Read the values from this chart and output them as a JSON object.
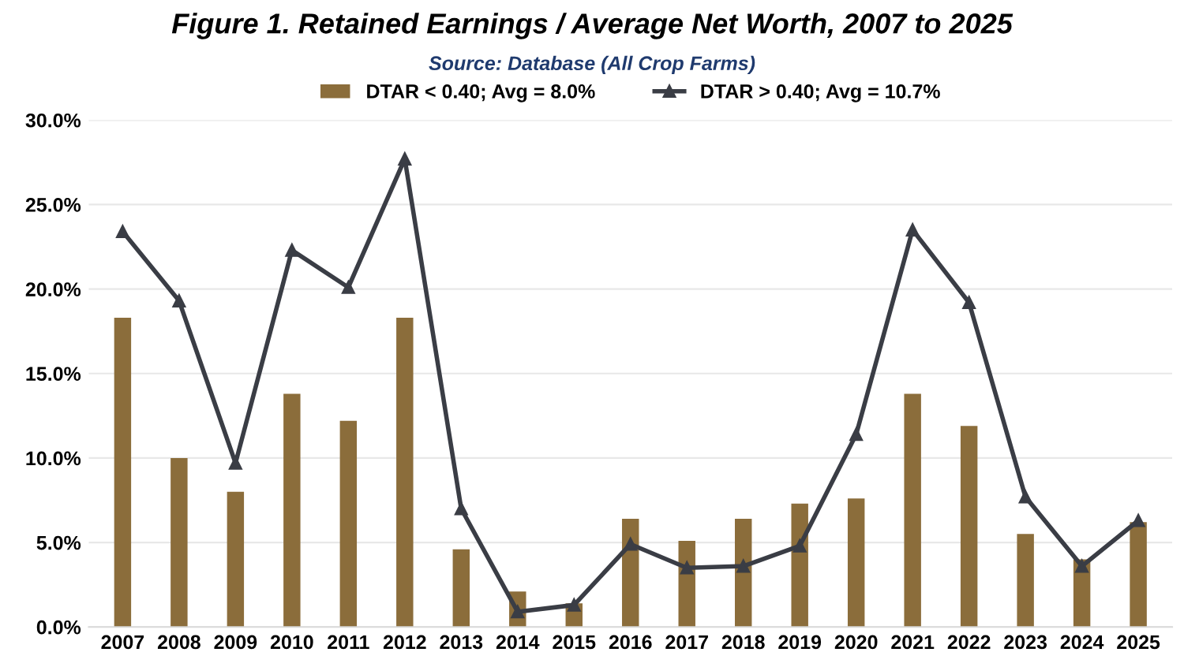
{
  "chart_data": {
    "type": "bar",
    "title": "Figure 1. Retained Earnings / Average Net Worth, 2007 to 2025",
    "subtitle": "Source: Database (All Crop Farms)",
    "categories": [
      "2007",
      "2008",
      "2009",
      "2010",
      "2011",
      "2012",
      "2013",
      "2014",
      "2015",
      "2016",
      "2017",
      "2018",
      "2019",
      "2020",
      "2021",
      "2022",
      "2023",
      "2024",
      "2025"
    ],
    "series": [
      {
        "name": "DTAR < 0.40; Avg = 8.0%",
        "color": "#8b6d3b",
        "values": [
          18.3,
          10.0,
          8.0,
          13.8,
          12.2,
          18.3,
          4.6,
          2.1,
          1.4,
          6.4,
          5.1,
          6.4,
          7.3,
          7.6,
          13.8,
          11.9,
          5.5,
          4.0,
          6.2
        ]
      },
      {
        "name": "DTAR > 0.40; Avg = 10.7%",
        "type": "line",
        "color": "#3a3d45",
        "marker": "triangle",
        "line_style": "solid",
        "values": [
          23.4,
          19.3,
          9.7,
          22.3,
          20.1,
          27.7,
          7.0,
          0.9,
          1.3,
          4.9,
          3.5,
          3.6,
          4.8,
          11.4,
          23.5,
          19.2,
          7.7,
          3.6,
          6.3
        ]
      }
    ],
    "ylim": [
      0,
      30
    ],
    "yticks": [
      {
        "value": 0,
        "label": "0.0%"
      },
      {
        "value": 5,
        "label": "5.0%"
      },
      {
        "value": 10,
        "label": "10.0%"
      },
      {
        "value": 15,
        "label": "15.0%"
      },
      {
        "value": 20,
        "label": "20.0%"
      },
      {
        "value": 25,
        "label": "25.0%"
      },
      {
        "value": 30,
        "label": "30.0%"
      }
    ],
    "grid": "y",
    "legend": "top"
  }
}
